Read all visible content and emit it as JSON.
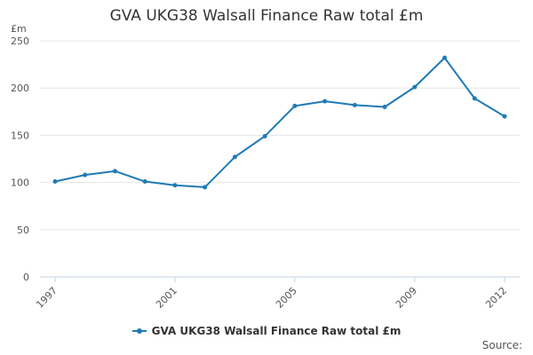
{
  "chart_data": {
    "type": "line",
    "title": "GVA UKG38 Walsall Finance Raw total £m",
    "ylabel": "£m",
    "xlabel": "",
    "x": [
      1997,
      1998,
      1999,
      2000,
      2001,
      2002,
      2003,
      2004,
      2005,
      2006,
      2007,
      2008,
      2009,
      2010,
      2011,
      2012
    ],
    "x_tick_labels": [
      "1997",
      "2001",
      "2005",
      "2009",
      "2012"
    ],
    "y_ticks": [
      0,
      50,
      100,
      150,
      200,
      250
    ],
    "ylim": [
      0,
      250
    ],
    "grid": true,
    "legend_position": "bottom",
    "series": [
      {
        "name": "GVA UKG38 Walsall Finance Raw total £m",
        "color": "#1f7ab5",
        "values": [
          101,
          108,
          112,
          101,
          97,
          95,
          127,
          149,
          181,
          186,
          182,
          180,
          201,
          232,
          189,
          170
        ]
      }
    ]
  },
  "source_label": "Source:"
}
